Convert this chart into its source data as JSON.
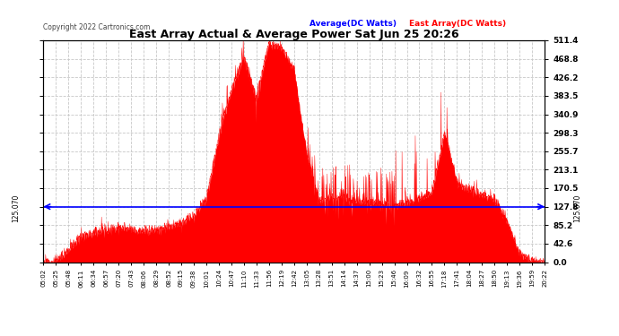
{
  "title": "East Array Actual & Average Power Sat Jun 25 20:26",
  "copyright": "Copyright 2022 Cartronics.com",
  "average_label": "Average(DC Watts)",
  "east_label": "East Array(DC Watts)",
  "average_value": 127.8,
  "ylim": [
    0.0,
    511.4
  ],
  "yticks": [
    0.0,
    42.6,
    85.2,
    127.8,
    170.5,
    213.1,
    255.7,
    298.3,
    340.9,
    383.5,
    426.2,
    468.8,
    511.4
  ],
  "ytick_labels": [
    "0.0",
    "42.6",
    "85.2",
    "127.8",
    "170.5",
    "213.1",
    "255.7",
    "298.3",
    "340.9",
    "383.5",
    "426.2",
    "468.8",
    "511.4"
  ],
  "annotation_value": 125.07,
  "annotation_text": "125.070",
  "background_color": "#ffffff",
  "fill_color": "#ff0000",
  "avg_line_color": "#0000ff",
  "grid_color": "#c8c8c8",
  "title_color": "#000000",
  "avg_label_color": "#0000ff",
  "east_label_color": "#ff0000",
  "copyright_color": "#444444",
  "x_times": [
    "05:02",
    "05:25",
    "05:48",
    "06:11",
    "06:34",
    "06:57",
    "07:20",
    "07:43",
    "08:06",
    "08:29",
    "08:52",
    "09:15",
    "09:38",
    "10:01",
    "10:24",
    "10:47",
    "11:10",
    "11:33",
    "11:56",
    "12:19",
    "12:42",
    "13:05",
    "13:28",
    "13:51",
    "14:14",
    "14:37",
    "15:00",
    "15:23",
    "15:46",
    "16:09",
    "16:32",
    "16:55",
    "17:18",
    "17:41",
    "18:04",
    "18:27",
    "18:50",
    "19:13",
    "19:36",
    "19:59",
    "20:22"
  ],
  "power_profile": [
    0,
    3,
    30,
    60,
    70,
    75,
    78,
    75,
    72,
    75,
    80,
    90,
    110,
    145,
    290,
    400,
    470,
    380,
    505,
    495,
    445,
    250,
    140,
    150,
    148,
    142,
    138,
    135,
    132,
    138,
    148,
    160,
    300,
    185,
    168,
    155,
    145,
    95,
    20,
    3,
    0
  ]
}
